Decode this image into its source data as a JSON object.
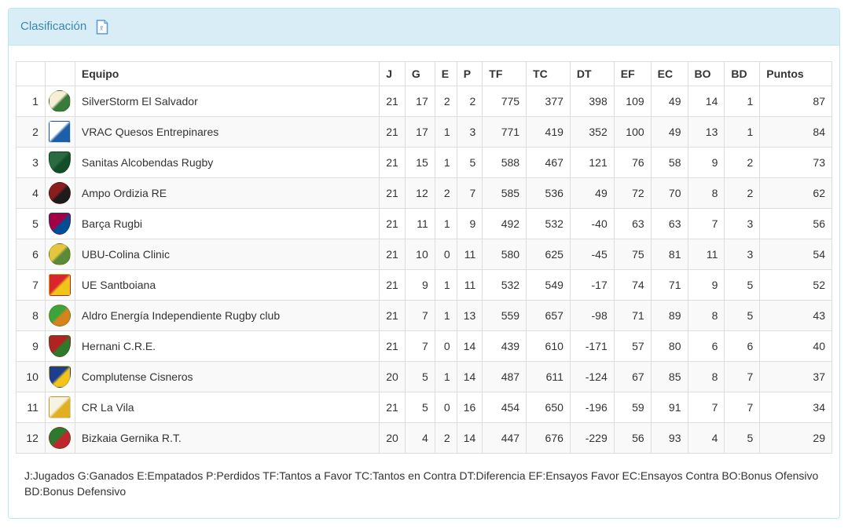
{
  "panel": {
    "title": "Clasificación",
    "export_icon": "excel-export-icon"
  },
  "colors": {
    "panel_border": "#bce8f1",
    "panel_heading_bg": "#d9edf7",
    "panel_title_text": "#3a87ad",
    "table_border": "#dddddd",
    "stripe_bg": "#f9f9f9",
    "body_text": "#333333",
    "icon_blue": "#5b9bd1"
  },
  "table": {
    "headers": [
      "",
      "",
      "Equipo",
      "J",
      "G",
      "E",
      "P",
      "TF",
      "TC",
      "DT",
      "EF",
      "EC",
      "BO",
      "BD",
      "Puntos"
    ],
    "rows": [
      {
        "pos": "1",
        "team": "SilverStorm El Salvador",
        "logo": {
          "shape": "circle",
          "c1": "#f5efd5",
          "c2": "#3a7a3a"
        },
        "stats": [
          "21",
          "17",
          "2",
          "2",
          "775",
          "377",
          "398",
          "109",
          "49",
          "14",
          "1",
          "87"
        ]
      },
      {
        "pos": "2",
        "team": "VRAC Quesos Entrepinares",
        "logo": {
          "shape": "square",
          "c1": "#ffffff",
          "c2": "#1b5fa8"
        },
        "stats": [
          "21",
          "17",
          "1",
          "3",
          "771",
          "419",
          "352",
          "100",
          "49",
          "13",
          "1",
          "84"
        ]
      },
      {
        "pos": "3",
        "team": "Sanitas Alcobendas Rugby",
        "logo": {
          "shape": "shield",
          "c1": "#2a6b40",
          "c2": "#134d2a"
        },
        "stats": [
          "21",
          "15",
          "1",
          "5",
          "588",
          "467",
          "121",
          "76",
          "58",
          "9",
          "2",
          "73"
        ]
      },
      {
        "pos": "4",
        "team": "Ampo Ordizia RE",
        "logo": {
          "shape": "circle",
          "c1": "#8b1d1d",
          "c2": "#1c1c1c"
        },
        "stats": [
          "21",
          "12",
          "2",
          "7",
          "585",
          "536",
          "49",
          "72",
          "70",
          "8",
          "2",
          "62"
        ]
      },
      {
        "pos": "5",
        "team": "Barça Rugbi",
        "logo": {
          "shape": "shield",
          "c1": "#a50044",
          "c2": "#004d98"
        },
        "stats": [
          "21",
          "11",
          "1",
          "9",
          "492",
          "532",
          "-40",
          "63",
          "63",
          "7",
          "3",
          "56"
        ]
      },
      {
        "pos": "6",
        "team": "UBU-Colina Clinic",
        "logo": {
          "shape": "circle",
          "c1": "#e6c63c",
          "c2": "#5a8a3a"
        },
        "stats": [
          "21",
          "10",
          "0",
          "11",
          "580",
          "625",
          "-45",
          "75",
          "81",
          "11",
          "3",
          "54"
        ]
      },
      {
        "pos": "7",
        "team": "UE Santboiana",
        "logo": {
          "shape": "square",
          "c1": "#d8262c",
          "c2": "#f0c419"
        },
        "stats": [
          "21",
          "9",
          "1",
          "11",
          "532",
          "549",
          "-17",
          "74",
          "71",
          "9",
          "5",
          "52"
        ]
      },
      {
        "pos": "8",
        "team": "Aldro Energía Independiente Rugby club",
        "logo": {
          "shape": "circle",
          "c1": "#3aa53a",
          "c2": "#d8821e"
        },
        "stats": [
          "21",
          "7",
          "1",
          "13",
          "559",
          "657",
          "-98",
          "71",
          "89",
          "8",
          "5",
          "43"
        ]
      },
      {
        "pos": "9",
        "team": "Hernani C.R.E.",
        "logo": {
          "shape": "shield",
          "c1": "#b22222",
          "c2": "#2d7a2d"
        },
        "stats": [
          "21",
          "7",
          "0",
          "14",
          "439",
          "610",
          "-171",
          "57",
          "80",
          "6",
          "6",
          "40"
        ]
      },
      {
        "pos": "10",
        "team": "Complutense Cisneros",
        "logo": {
          "shape": "shield",
          "c1": "#1d3d8f",
          "c2": "#f0c419"
        },
        "stats": [
          "20",
          "5",
          "1",
          "14",
          "487",
          "611",
          "-124",
          "67",
          "85",
          "8",
          "7",
          "37"
        ]
      },
      {
        "pos": "11",
        "team": "CR La Vila",
        "logo": {
          "shape": "square",
          "c1": "#f7f3e4",
          "c2": "#e0b020"
        },
        "stats": [
          "21",
          "5",
          "0",
          "16",
          "454",
          "650",
          "-196",
          "59",
          "91",
          "7",
          "7",
          "34"
        ]
      },
      {
        "pos": "12",
        "team": "Bizkaia Gernika R.T.",
        "logo": {
          "shape": "circle",
          "c1": "#2d7a2d",
          "c2": "#c0272d"
        },
        "stats": [
          "20",
          "4",
          "2",
          "14",
          "447",
          "676",
          "-229",
          "56",
          "93",
          "4",
          "5",
          "29"
        ]
      }
    ]
  },
  "legend": "J:Jugados G:Ganados E:Empatados P:Perdidos TF:Tantos a Favor TC:Tantos en Contra DT:Diferencia EF:Ensayos Favor EC:Ensayos Contra BO:Bonus Ofensivo BD:Bonus Defensivo"
}
